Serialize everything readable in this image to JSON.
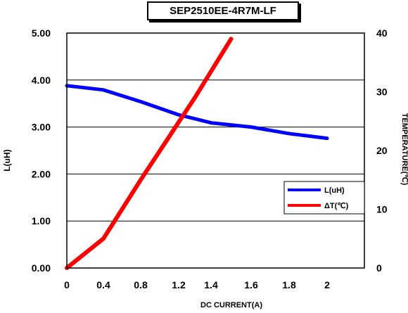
{
  "chart_data": {
    "type": "line",
    "title": "SEP2510EE-4R7M-LF",
    "xlabel": "DC CURRENT(A)",
    "ylabel_left": "L(uH)",
    "ylabel_right": "TEMPERATURE(℃)",
    "x_ticks": [
      "0",
      "0.4",
      "0.8",
      "1.2",
      "1.4",
      "1.6",
      "1.8",
      "2"
    ],
    "x_ticks_note": "tick labels as printed; positions evenly spaced",
    "y_left_ticks": [
      "0.00",
      "1.00",
      "2.00",
      "3.00",
      "4.00",
      "5.00"
    ],
    "y_right_ticks": [
      "0",
      "10",
      "20",
      "30",
      "40"
    ],
    "ylim_left": [
      0,
      5
    ],
    "ylim_right": [
      0,
      40
    ],
    "grid": "horizontal",
    "legend_position": "bottom-right",
    "series": [
      {
        "name": "L(uH)",
        "axis": "left",
        "color": "#0000ff",
        "x_index": [
          0,
          1,
          2,
          3,
          4,
          5,
          6,
          7
        ],
        "values": [
          3.88,
          3.79,
          3.54,
          3.26,
          3.09,
          3.0,
          2.86,
          2.76
        ]
      },
      {
        "name": "ΔT(℃)",
        "axis": "right",
        "color": "#ff0000",
        "x_index": [
          0,
          1,
          2,
          3.5,
          4.5
        ],
        "values": [
          0,
          5,
          15,
          29,
          39
        ]
      }
    ]
  }
}
